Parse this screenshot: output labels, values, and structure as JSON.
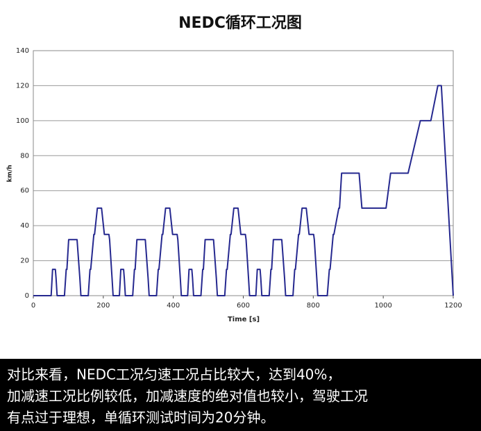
{
  "chart_data": {
    "type": "line",
    "title": "NEDC循环工况图",
    "xlabel": "Time [s]",
    "ylabel": "km/h",
    "x": [
      0,
      51,
      55,
      63,
      65,
      68,
      89,
      94,
      96,
      101,
      125,
      133,
      136,
      157,
      162,
      164,
      173,
      175,
      183,
      195,
      203,
      216,
      218,
      225,
      228,
      235,
      246,
      250,
      258,
      260,
      263,
      284,
      289,
      291,
      296,
      320,
      328,
      331,
      352,
      357,
      359,
      368,
      370,
      378,
      390,
      398,
      411,
      413,
      420,
      423,
      430,
      441,
      445,
      453,
      455,
      458,
      479,
      484,
      486,
      491,
      515,
      523,
      526,
      547,
      552,
      554,
      563,
      565,
      573,
      585,
      593,
      606,
      608,
      615,
      618,
      625,
      636,
      640,
      648,
      650,
      653,
      674,
      679,
      681,
      686,
      710,
      718,
      721,
      742,
      747,
      749,
      758,
      760,
      768,
      780,
      788,
      801,
      803,
      810,
      813,
      820,
      840,
      846,
      848,
      857,
      859,
      873,
      875,
      881,
      931,
      939,
      1008,
      1021,
      1071,
      1106,
      1136,
      1156,
      1166,
      1200
    ],
    "values": [
      0,
      0,
      15,
      15,
      10,
      0,
      0,
      15,
      15,
      32,
      32,
      10,
      0,
      0,
      15,
      15,
      35,
      35,
      50,
      50,
      35,
      35,
      32,
      10,
      0,
      0,
      0,
      15,
      15,
      10,
      0,
      0,
      15,
      15,
      32,
      32,
      10,
      0,
      0,
      15,
      15,
      35,
      35,
      50,
      50,
      35,
      35,
      32,
      10,
      0,
      0,
      0,
      15,
      15,
      10,
      0,
      0,
      15,
      15,
      32,
      32,
      10,
      0,
      0,
      15,
      15,
      35,
      35,
      50,
      50,
      35,
      35,
      32,
      10,
      0,
      0,
      0,
      15,
      15,
      10,
      0,
      0,
      15,
      15,
      32,
      32,
      10,
      0,
      0,
      15,
      15,
      35,
      35,
      50,
      50,
      35,
      35,
      32,
      10,
      0,
      0,
      0,
      15,
      15,
      35,
      35,
      50,
      50,
      70,
      70,
      50,
      50,
      70,
      70,
      100,
      100,
      120,
      120,
      0
    ],
    "color": "#25288f",
    "xlim": [
      0,
      1200
    ],
    "xticks": [
      0,
      200,
      400,
      600,
      800,
      1000,
      1200
    ],
    "ylim": [
      0,
      140
    ],
    "yticks": [
      0,
      20,
      40,
      60,
      80,
      100,
      120,
      140
    ],
    "grid": true,
    "annotations": [
      "对比来看，NEDC工况匀速工况占比较大，达到40%，",
      "加减速工况比例较低，加减速度的绝对值也较小，驾驶工况",
      "有点过于理想，单循环测试时间为20分钟。"
    ]
  }
}
